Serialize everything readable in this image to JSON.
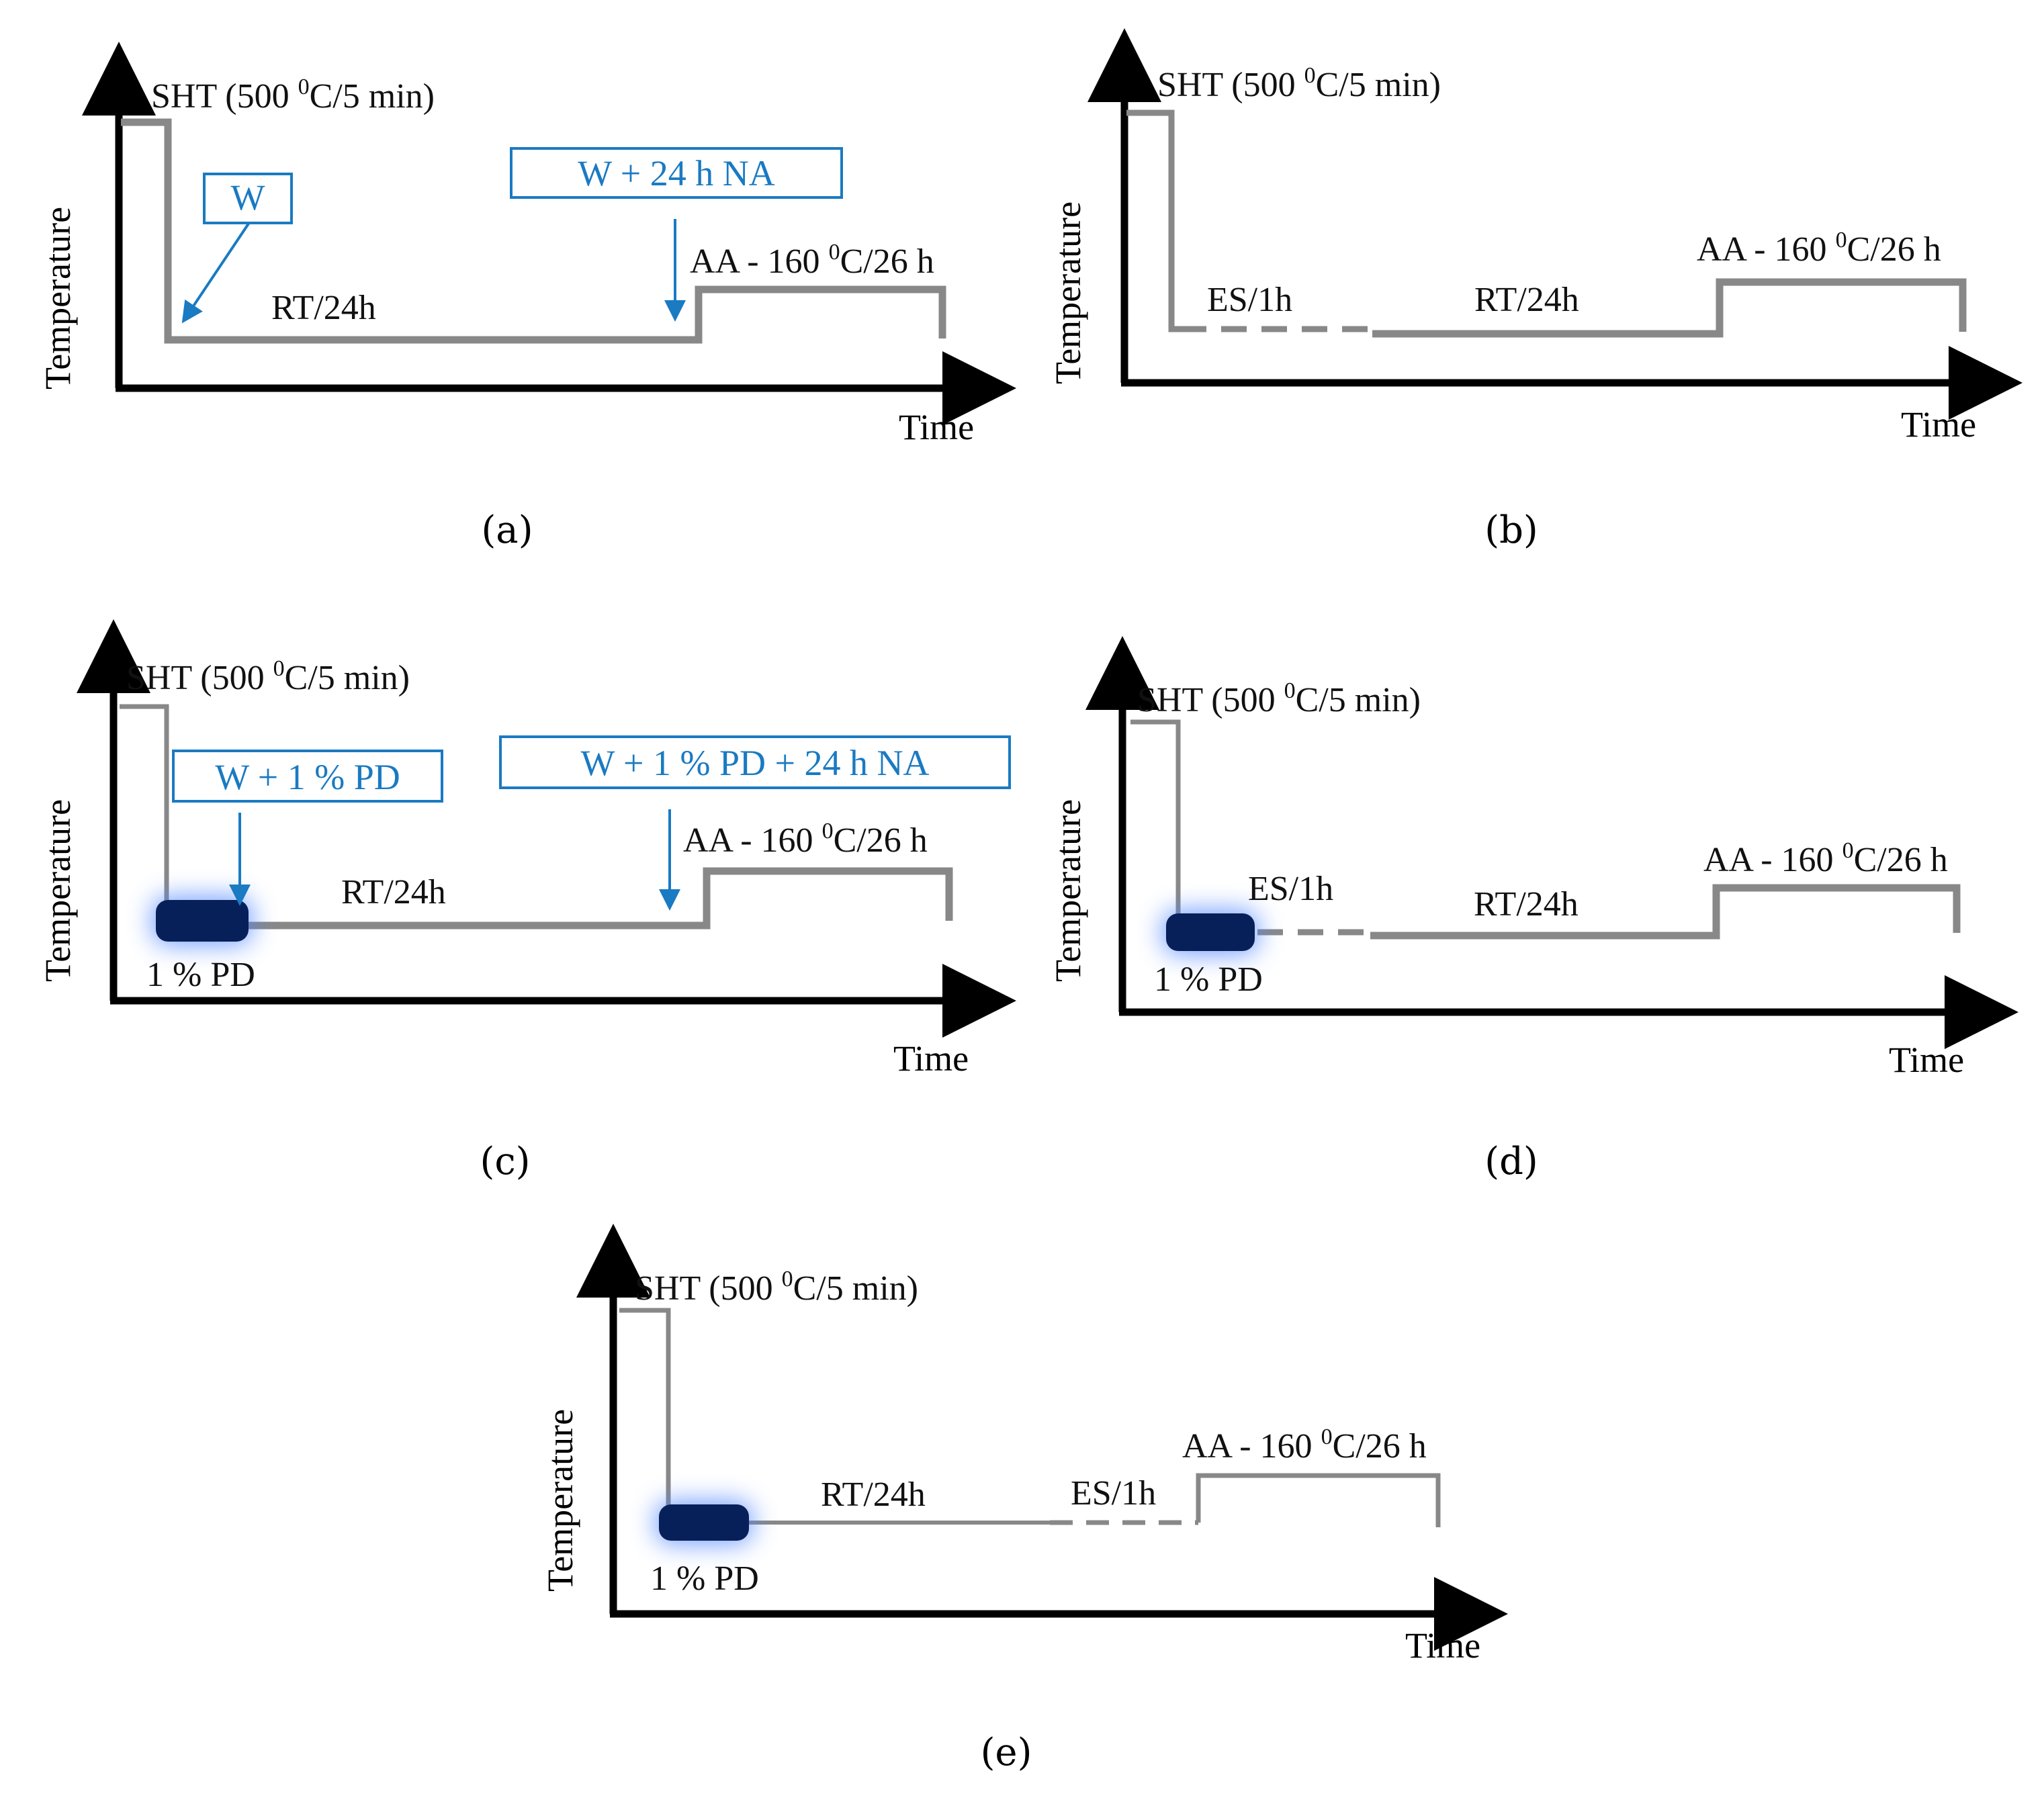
{
  "colors": {
    "axis": "#000000",
    "line": "#888888",
    "annotation": "#1a7ac2",
    "deformation_block": "#08205a",
    "glow": "#4f86ff",
    "text": "#111111"
  },
  "axes": {
    "y_title": "Temperature",
    "x_title": "Time"
  },
  "common_labels": {
    "sht_prefix": "SHT (500 ",
    "sht_sup": "0",
    "sht_suffix": "C/5 min)",
    "aa_prefix": "AA - 160 ",
    "aa_sup": "0",
    "aa_suffix": "C/26 h",
    "rt": "RT/24h",
    "es": "ES/1h",
    "pd": "1 % PD"
  },
  "panels": {
    "a": {
      "caption": "(a)",
      "boxes": [
        "W",
        "W + 24 h NA"
      ],
      "steps": [
        "SHT",
        "W",
        "RT/24h",
        "NA",
        "AA"
      ]
    },
    "b": {
      "caption": "(b)",
      "steps": [
        "SHT",
        "ES/1h",
        "RT/24h",
        "AA"
      ]
    },
    "c": {
      "caption": "(c)",
      "boxes": [
        "W + 1 % PD",
        "W + 1 % PD + 24 h NA"
      ],
      "steps": [
        "SHT",
        "1 % PD",
        "RT/24h",
        "AA"
      ]
    },
    "d": {
      "caption": "(d)",
      "steps": [
        "SHT",
        "1 % PD",
        "ES/1h",
        "RT/24h",
        "AA"
      ]
    },
    "e": {
      "caption": "(e)",
      "steps": [
        "SHT",
        "1 % PD",
        "RT/24h",
        "ES/1h",
        "AA"
      ]
    }
  }
}
